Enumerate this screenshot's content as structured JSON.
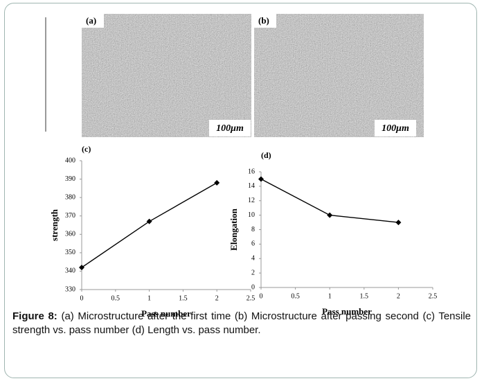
{
  "panels": [
    {
      "label": "(a)",
      "scale": "100μm"
    },
    {
      "label": "(b)",
      "scale": "100μm"
    }
  ],
  "chart_data": [
    {
      "type": "line",
      "panel": "(c)",
      "x_label": "Pass number",
      "y_label": "strength",
      "x": [
        0,
        1,
        2
      ],
      "series": [
        {
          "color": "#000000",
          "values": [
            342,
            367,
            388
          ]
        }
      ],
      "xlim": [
        0,
        2.5
      ],
      "xticks": [
        0,
        0.5,
        1,
        1.5,
        2,
        2.5
      ],
      "ylim": [
        330,
        400
      ],
      "yticks": [
        330,
        340,
        350,
        360,
        370,
        380,
        390,
        400
      ]
    },
    {
      "type": "line",
      "panel": "(d)",
      "x_label": "Pass number",
      "y_label": "Elongation",
      "x": [
        0,
        1,
        2
      ],
      "series": [
        {
          "color": "#000000",
          "values": [
            15,
            10,
            9
          ]
        }
      ],
      "xlim": [
        0,
        2.5
      ],
      "xticks": [
        0,
        0.5,
        1,
        1.5,
        2,
        2.5
      ],
      "ylim": [
        0,
        16
      ],
      "yticks": [
        0,
        2,
        4,
        6,
        8,
        10,
        12,
        14,
        16
      ]
    }
  ],
  "caption": {
    "label": "Figure 8:",
    "text": "(a) Microstructure after the first time (b) Microstructure after passing second (c) Tensile strength vs. pass number (d) Length vs. pass number."
  }
}
